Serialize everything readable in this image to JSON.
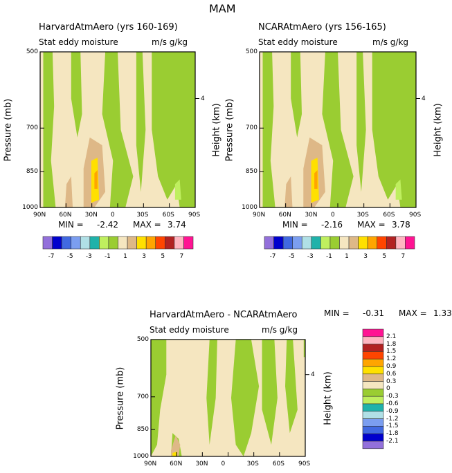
{
  "title": "MAM",
  "panels": [
    {
      "name": "HarvardAtmAero (yrs 160-169)",
      "variable": "Stat eddy moisture",
      "units": "m/s g/kg",
      "min_label": "MIN =",
      "min": "-2.42",
      "max_label": "MAX =",
      "max": "3.74"
    },
    {
      "name": "NCARAtmAero (yrs 156-165)",
      "variable": "Stat eddy moisture",
      "units": "m/s g/kg",
      "min_label": "MIN =",
      "min": "-2.16",
      "max_label": "MAX =",
      "max": "3.78"
    },
    {
      "name": "HarvardAtmAero - NCARAtmAero",
      "variable": "Stat eddy moisture",
      "units": "m/s g/kg",
      "min_label": "MIN =",
      "min": "-0.31",
      "max_label": "MAX =",
      "max": "1.33"
    }
  ],
  "axes": {
    "ylabel": "Pressure (mb)",
    "y2label": "Height (km)",
    "yticks": [
      "500",
      "700",
      "850",
      "1000"
    ],
    "y2ticks": [
      "4"
    ],
    "xticks": [
      "90N",
      "60N",
      "30N",
      "0",
      "30S",
      "60S",
      "90S"
    ]
  },
  "colorbar_top": {
    "labels": [
      "-7",
      "-5",
      "-3",
      "-1",
      "1",
      "3",
      "5",
      "7"
    ],
    "colors": [
      "#9370DB",
      "#0000CD",
      "#4169E1",
      "#7B9EF0",
      "#B0E0E6",
      "#20B2AA",
      "#BFEF5F",
      "#9ACD32",
      "#F5E6C0",
      "#DEB887",
      "#FFE000",
      "#FFA500",
      "#FF4500",
      "#B22222",
      "#FFB6C1",
      "#FF1493"
    ]
  },
  "colorbar_diff": {
    "labels": [
      "2.1",
      "1.8",
      "1.5",
      "1.2",
      "0.9",
      "0.6",
      "0.3",
      "0",
      "-0.3",
      "-0.6",
      "-0.9",
      "-1.2",
      "-1.5",
      "-1.8",
      "-2.1"
    ]
  },
  "chart_data": [
    {
      "type": "heatmap",
      "title": "HarvardAtmAero (yrs 160-169)",
      "xlabel": "",
      "ylabel": "Pressure (mb)",
      "ylim": [
        1000,
        500
      ],
      "xlim": [
        "90N",
        "90S"
      ],
      "min": -2.42,
      "max": 3.74
    },
    {
      "type": "heatmap",
      "title": "NCARAtmAero (yrs 156-165)",
      "xlabel": "",
      "ylabel": "Pressure (mb)",
      "ylim": [
        1000,
        500
      ],
      "xlim": [
        "90N",
        "90S"
      ],
      "min": -2.16,
      "max": 3.78
    },
    {
      "type": "heatmap",
      "title": "HarvardAtmAero - NCARAtmAero",
      "xlabel": "",
      "ylabel": "Pressure (mb)",
      "ylim": [
        1000,
        500
      ],
      "xlim": [
        "90N",
        "90S"
      ],
      "min": -0.31,
      "max": 1.33
    }
  ]
}
